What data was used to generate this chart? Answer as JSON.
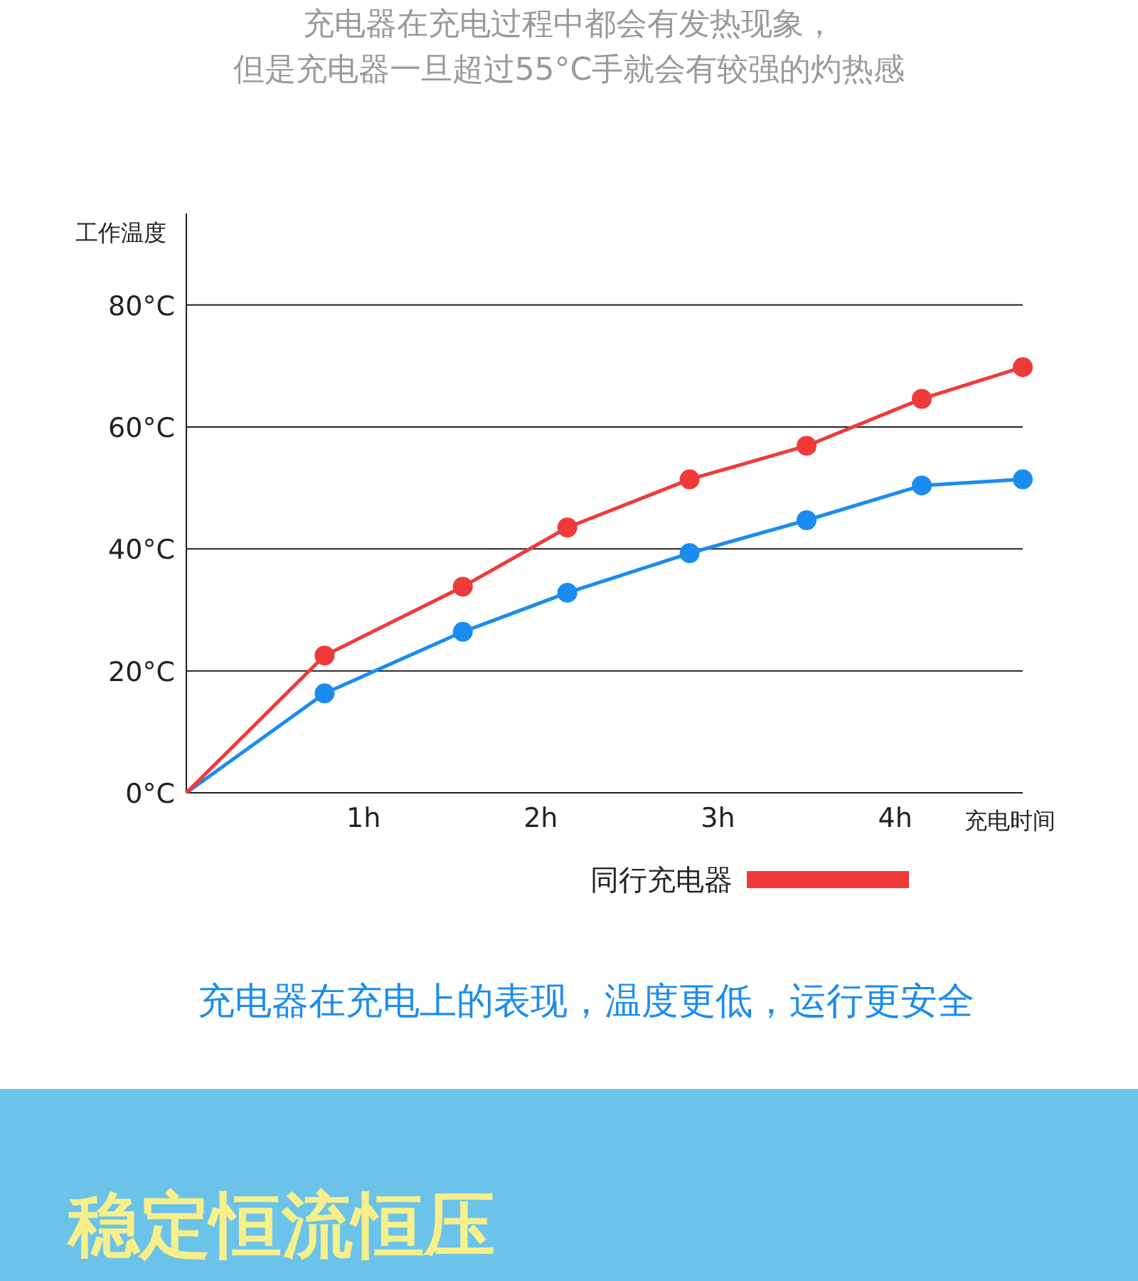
{
  "chart_data": {
    "type": "line",
    "title": "充电器在充电过程中都会有发热现象，",
    "subtitle": "但是充电器一旦超过55°C手就会有较强的灼热感",
    "xlabel": "充电时间",
    "ylabel": "工作温度",
    "annotations": [
      "充电器在充电上的表现，温度更低，运行更安全",
      "稳定恒流恒压"
    ],
    "x": [
      0,
      0.78,
      1.56,
      2.15,
      2.84,
      3.5,
      4.15,
      4.72
    ],
    "series": [
      {
        "color": "#1a8cf0",
        "values": [
          0,
          16.3,
          26.4,
          32.8,
          39.3,
          44.7,
          50.4,
          51.4
        ]
      },
      {
        "name": "同行充电器",
        "color": "#f03a3a",
        "values": [
          0,
          22.5,
          33.8,
          43.5,
          51.4,
          56.9,
          64.6,
          69.8
        ]
      }
    ],
    "xlim": [
      0,
      4.72
    ],
    "ylim": [
      0,
      95
    ],
    "xticks": [
      {
        "value": 1,
        "label": "1h"
      },
      {
        "value": 2,
        "label": "2h"
      },
      {
        "value": 3,
        "label": "3h"
      },
      {
        "value": 4,
        "label": "4h"
      }
    ],
    "yticks": [
      {
        "value": 0,
        "label": "0°C"
      },
      {
        "value": 20,
        "label": "20°C"
      },
      {
        "value": 40,
        "label": "40°C"
      },
      {
        "value": 60,
        "label": "60°C"
      },
      {
        "value": 80,
        "label": "80°C"
      }
    ],
    "grid": "y",
    "legend": "bottom",
    "marker": "circle"
  }
}
